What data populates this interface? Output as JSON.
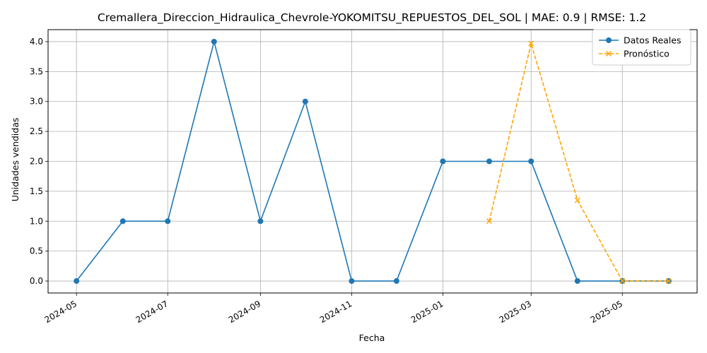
{
  "chart_data": {
    "type": "line",
    "title": "Cremallera_Direccion_Hidraulica_Chevrole-YOKOMITSU_REPUESTOS_DEL_SOL | MAE: 0.9 | RMSE: 1.2",
    "xlabel": "Fecha",
    "ylabel": "Unidades vendidas",
    "x_ticks": [
      "2024-05",
      "2024-07",
      "2024-09",
      "2024-11",
      "2025-01",
      "2025-03",
      "2025-05"
    ],
    "y_ticks": [
      "0.0",
      "0.5",
      "1.0",
      "1.5",
      "2.0",
      "2.5",
      "3.0",
      "3.5",
      "4.0"
    ],
    "ylim": [
      -0.2,
      4.2
    ],
    "xlim": [
      "2024-04-12",
      "2025-06-20"
    ],
    "grid": true,
    "legend_position": "top-right",
    "series": [
      {
        "name": "Datos Reales",
        "color": "#1f77b4",
        "marker": "circle",
        "line_style": "solid",
        "x": [
          "2024-05-01",
          "2024-06-01",
          "2024-07-01",
          "2024-08-01",
          "2024-09-01",
          "2024-10-01",
          "2024-11-01",
          "2024-12-01",
          "2025-01-01",
          "2025-02-01",
          "2025-03-01",
          "2025-04-01",
          "2025-05-01",
          "2025-06-01"
        ],
        "values": [
          0,
          1,
          1,
          4,
          1,
          3,
          0,
          0,
          2,
          2,
          2,
          0,
          0,
          0
        ]
      },
      {
        "name": "Pronóstico",
        "color": "#ffa500",
        "marker": "x",
        "line_style": "dashed",
        "x": [
          "2025-02-01",
          "2025-03-01",
          "2025-04-01",
          "2025-05-01",
          "2025-06-01"
        ],
        "values": [
          1.0,
          3.97,
          1.35,
          0.0,
          0.0
        ]
      }
    ]
  }
}
